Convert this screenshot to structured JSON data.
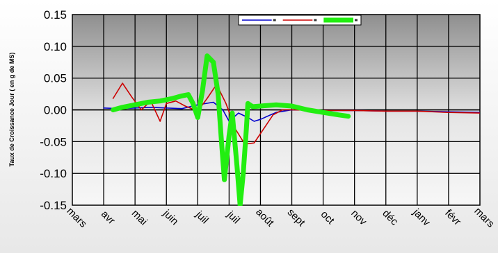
{
  "chart_data": {
    "type": "line",
    "title": "",
    "xlabel": "",
    "ylabel": "Taux de Croissance Jour ( en g de MS)",
    "ylim": [
      -0.15,
      0.15
    ],
    "yticks": [
      "0.15",
      "0.10",
      "0.05",
      "0.00",
      "-0.05",
      "-0.10",
      "-0.15"
    ],
    "categories": [
      "mars",
      "avr",
      "mai",
      "juin",
      "juil",
      "juil",
      "août",
      "sept",
      "oct",
      "nov",
      "déc",
      "janv",
      "févr",
      "mars"
    ],
    "x_scale": "month index (0 = mars, 13 = mars of next year)",
    "grid": true,
    "legend": {
      "position": "top-right",
      "entries": [
        "",
        "",
        ""
      ]
    },
    "series": [
      {
        "color": "#0000cc",
        "points": [
          [
            1.0,
            0.003
          ],
          [
            1.5,
            0.002
          ],
          [
            2.0,
            0.003
          ],
          [
            2.5,
            0.004
          ],
          [
            3.0,
            0.003
          ],
          [
            3.5,
            0.002
          ],
          [
            4.0,
            0.008
          ],
          [
            4.5,
            0.012
          ],
          [
            4.8,
            0.0
          ],
          [
            5.0,
            -0.018
          ],
          [
            5.3,
            -0.005
          ],
          [
            5.6,
            -0.012
          ],
          [
            5.8,
            -0.018
          ],
          [
            6.0,
            -0.015
          ],
          [
            6.5,
            -0.004
          ],
          [
            7.0,
            0.0
          ],
          [
            8.0,
            -0.001
          ],
          [
            9.0,
            -0.001
          ],
          [
            10.0,
            -0.002
          ],
          [
            11.0,
            -0.002
          ],
          [
            12.0,
            -0.003
          ],
          [
            13.0,
            -0.004
          ]
        ]
      },
      {
        "color": "#cc0000",
        "points": [
          [
            1.3,
            0.018
          ],
          [
            1.6,
            0.042
          ],
          [
            1.9,
            0.02
          ],
          [
            2.2,
            0.0
          ],
          [
            2.5,
            0.014
          ],
          [
            2.8,
            -0.018
          ],
          [
            3.0,
            0.01
          ],
          [
            3.3,
            0.014
          ],
          [
            3.6,
            0.006
          ],
          [
            4.0,
            -0.002
          ],
          [
            4.3,
            0.018
          ],
          [
            4.6,
            0.04
          ],
          [
            4.9,
            0.01
          ],
          [
            5.2,
            -0.03
          ],
          [
            5.5,
            -0.054
          ],
          [
            5.8,
            -0.052
          ],
          [
            6.1,
            -0.03
          ],
          [
            6.4,
            -0.008
          ],
          [
            6.7,
            0.0
          ],
          [
            7.0,
            0.0
          ],
          [
            8.0,
            -0.001
          ],
          [
            9.0,
            -0.001
          ],
          [
            10.0,
            -0.002
          ],
          [
            11.0,
            -0.002
          ],
          [
            12.0,
            -0.004
          ],
          [
            13.0,
            -0.005
          ]
        ]
      },
      {
        "color": "#22ee11",
        "points": [
          [
            1.3,
            0.0
          ],
          [
            1.6,
            0.004
          ],
          [
            2.0,
            0.008
          ],
          [
            2.4,
            0.012
          ],
          [
            2.8,
            0.014
          ],
          [
            3.2,
            0.018
          ],
          [
            3.5,
            0.022
          ],
          [
            3.7,
            0.024
          ],
          [
            3.85,
            0.01
          ],
          [
            4.0,
            -0.012
          ],
          [
            4.15,
            0.03
          ],
          [
            4.3,
            0.085
          ],
          [
            4.5,
            0.075
          ],
          [
            4.65,
            0.025
          ],
          [
            4.75,
            -0.045
          ],
          [
            4.85,
            -0.11
          ],
          [
            5.0,
            -0.04
          ],
          [
            5.1,
            -0.005
          ],
          [
            5.25,
            -0.088
          ],
          [
            5.35,
            -0.15
          ],
          [
            5.45,
            -0.1
          ],
          [
            5.55,
            -0.03
          ],
          [
            5.6,
            0.01
          ],
          [
            5.75,
            0.005
          ],
          [
            6.0,
            0.006
          ],
          [
            6.5,
            0.008
          ],
          [
            7.0,
            0.006
          ],
          [
            7.5,
            0.0
          ],
          [
            8.0,
            -0.004
          ],
          [
            8.5,
            -0.008
          ],
          [
            8.8,
            -0.01
          ]
        ]
      }
    ]
  }
}
